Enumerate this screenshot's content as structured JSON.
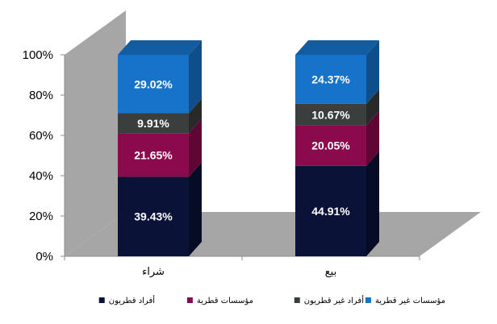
{
  "chart_data": {
    "type": "bar",
    "stacked": true,
    "three_d": true,
    "categories": [
      "شراء",
      "بيع"
    ],
    "series": [
      {
        "name": "أفراد قطريون",
        "color": "#0a1238",
        "values": [
          39.43,
          44.91
        ]
      },
      {
        "name": "مؤسسات قطرية",
        "color": "#8a0a4d",
        "values": [
          21.65,
          20.05
        ]
      },
      {
        "name": "أفراد غير قطريون",
        "color": "#3a3e3c",
        "values": [
          9.91,
          10.67
        ]
      },
      {
        "name": "مؤسسات غير قطرية",
        "color": "#1673c9",
        "values": [
          29.02,
          24.37
        ]
      }
    ],
    "value_labels": [
      [
        "39.43%",
        "44.91%"
      ],
      [
        "21.65%",
        "20.05%"
      ],
      [
        "9.91%",
        "10.67%"
      ],
      [
        "29.02%",
        "24.37%"
      ]
    ],
    "ylim": [
      0,
      100
    ],
    "yticks": [
      "0%",
      "20%",
      "40%",
      "60%",
      "80%",
      "100%"
    ],
    "legend_position": "bottom",
    "grid": false,
    "wall_color": "#a6a6a6",
    "floor_color": "#a6a6a6"
  }
}
